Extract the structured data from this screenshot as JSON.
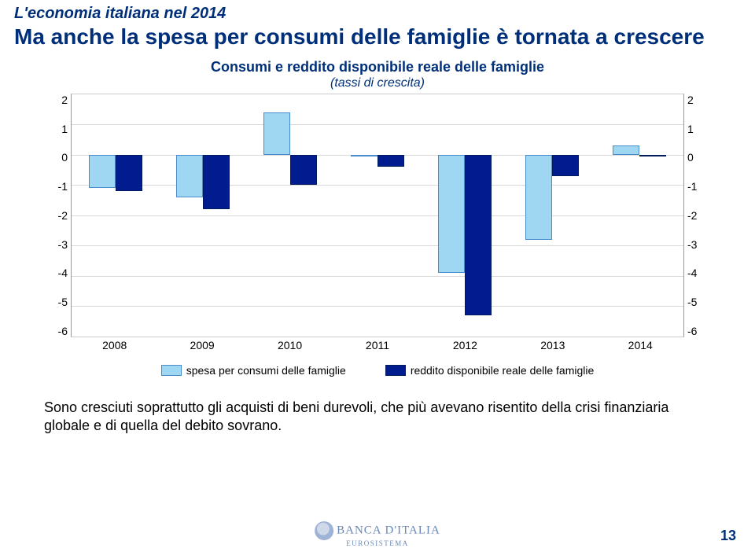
{
  "header": {
    "pretitle": "L'economia italiana nel 2014",
    "title": "Ma anche la spesa per consumi delle famiglie è tornata a crescere"
  },
  "chart": {
    "type": "bar",
    "title": "Consumi e reddito disponibile reale delle famiglie",
    "subtitle": "(tassi di crescita)",
    "categories": [
      "2008",
      "2009",
      "2010",
      "2011",
      "2012",
      "2013",
      "2014"
    ],
    "series": [
      {
        "key": "spesa",
        "label": "spesa per consumi delle famiglie",
        "color": "#9fd6f2",
        "border": "#4a8bcc",
        "values": [
          -1.1,
          -1.4,
          1.4,
          0.0,
          -3.9,
          -2.8,
          0.3
        ]
      },
      {
        "key": "reddito",
        "label": "reddito disponibile reale delle famiglie",
        "color": "#001c8f",
        "border": "#001c5c",
        "values": [
          -1.2,
          -1.8,
          -1.0,
          -0.4,
          -5.3,
          -0.7,
          0.0
        ]
      }
    ],
    "ylim": [
      -6,
      2
    ],
    "ytick_step": 1,
    "grid_color": "#d9d9d9",
    "background_color": "#ffffff",
    "axis_fontsize": 14,
    "title_fontsize": 18
  },
  "body_text": "Sono cresciuti soprattutto gli acquisti di beni durevoli, che più avevano risentito della crisi finanziaria globale e di quella del debito sovrano.",
  "page_number": "13",
  "logo": {
    "bank": "BANCA D'ITALIA",
    "euro": "EUROSISTEMA"
  }
}
